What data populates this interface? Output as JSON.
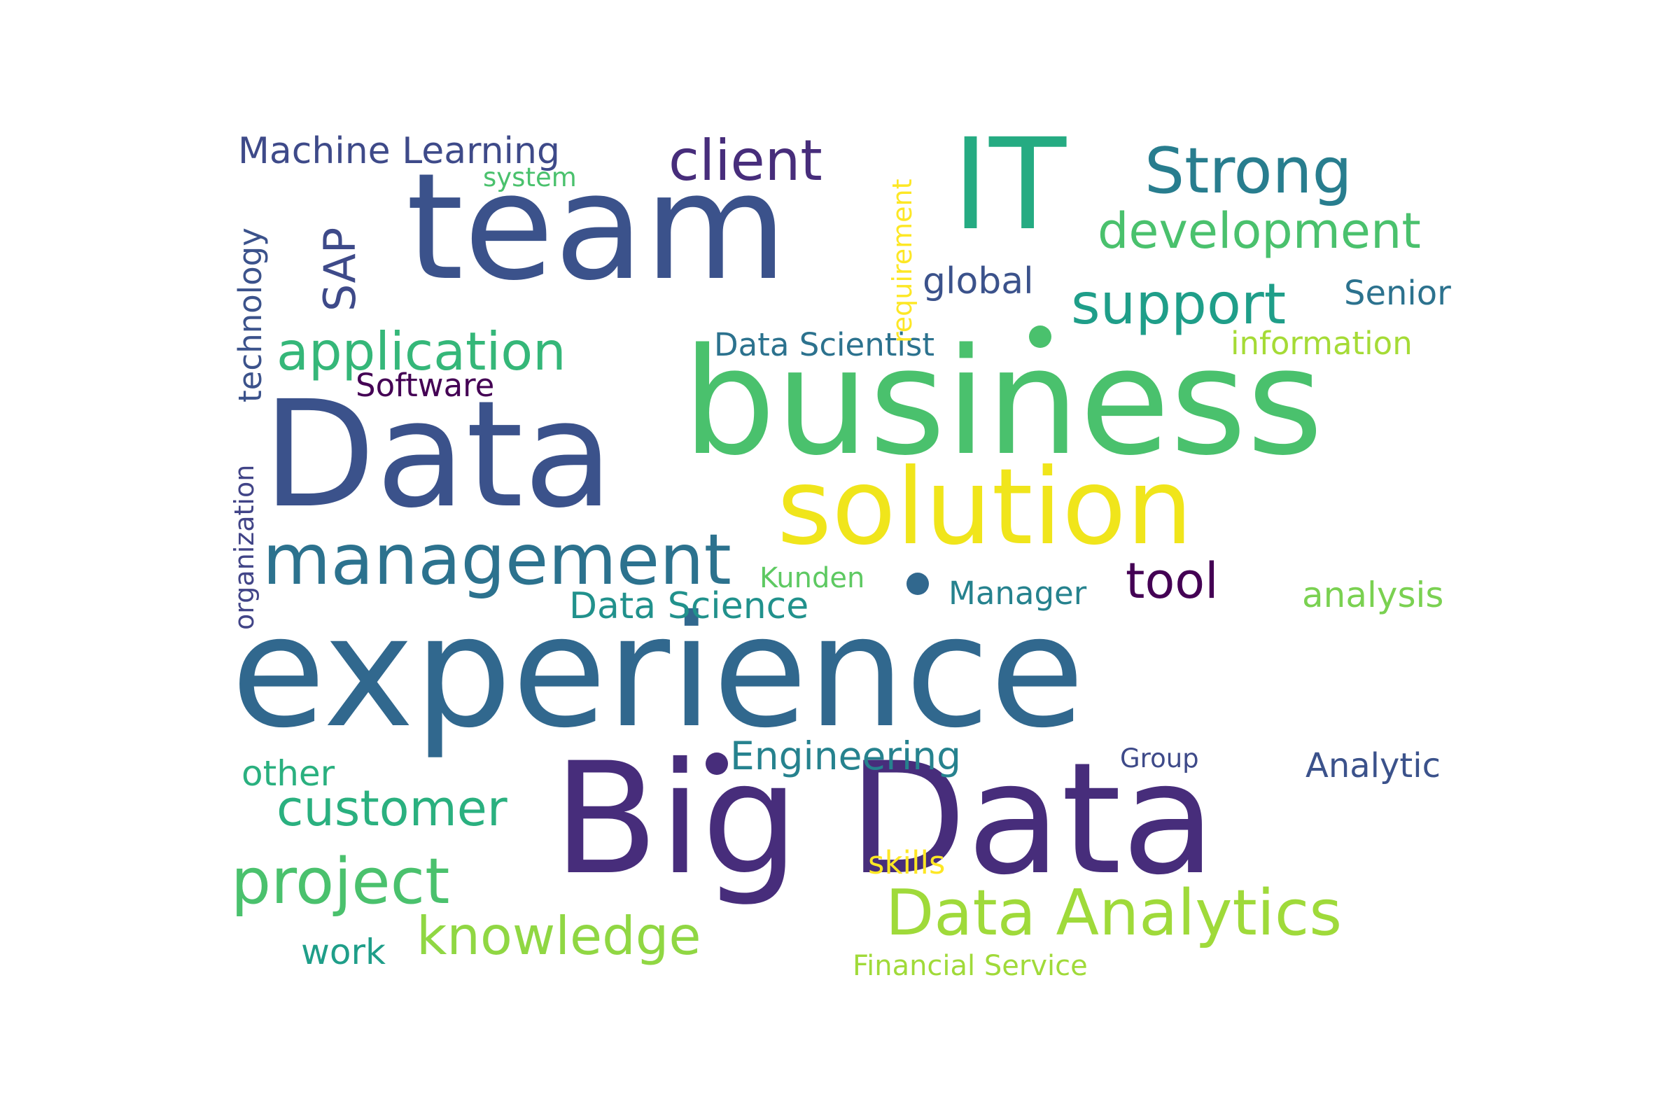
{
  "words": [
    {
      "text": "experience",
      "color": "#31688e"
    },
    {
      "text": "Big Data",
      "color": "#472d7b"
    },
    {
      "text": "business",
      "color": "#4ac16d"
    },
    {
      "text": "team",
      "color": "#3b528b"
    },
    {
      "text": "Data",
      "color": "#3b528b"
    },
    {
      "text": "solution",
      "color": "#f0e51b"
    },
    {
      "text": "IT",
      "color": "#25ab82"
    },
    {
      "text": "management",
      "color": "#2c728e"
    },
    {
      "text": "Data Analytics",
      "color": "#9fda3a"
    },
    {
      "text": "Strong",
      "color": "#287d8e"
    },
    {
      "text": "project",
      "color": "#4ac16d"
    },
    {
      "text": "client",
      "color": "#472d7b"
    },
    {
      "text": "application",
      "color": "#35b779"
    },
    {
      "text": "support",
      "color": "#1f9e89"
    },
    {
      "text": "development",
      "color": "#4ac16d"
    },
    {
      "text": "knowledge",
      "color": "#90d743"
    },
    {
      "text": "customer",
      "color": "#2ab07f"
    },
    {
      "text": "tool",
      "color": "#440154"
    },
    {
      "text": "SAP",
      "color": "#3e4a89"
    },
    {
      "text": "Machine Learning",
      "color": "#3e4a89"
    },
    {
      "text": "technology",
      "color": "#3b528b"
    },
    {
      "text": "Engineering",
      "color": "#26828e"
    },
    {
      "text": "Data Science",
      "color": "#21918c"
    },
    {
      "text": "Data Scientist",
      "color": "#2c728e"
    },
    {
      "text": "Manager",
      "color": "#26828e"
    },
    {
      "text": "analysis",
      "color": "#7ad151"
    },
    {
      "text": "other",
      "color": "#2ab07f"
    },
    {
      "text": "global",
      "color": "#3b528b"
    },
    {
      "text": "Senior",
      "color": "#2c728e"
    },
    {
      "text": "Analytic",
      "color": "#3b528b"
    },
    {
      "text": "work",
      "color": "#1f9e89"
    },
    {
      "text": "Software",
      "color": "#440154"
    },
    {
      "text": "information",
      "color": "#a5db36"
    },
    {
      "text": "skills",
      "color": "#fde725"
    },
    {
      "text": "organization",
      "color": "#414487"
    },
    {
      "text": "requirement",
      "color": "#fde725"
    },
    {
      "text": "Kunden",
      "color": "#5ec962"
    },
    {
      "text": "Financial Service",
      "color": "#a0da39"
    },
    {
      "text": "system",
      "color": "#4ac16d"
    },
    {
      "text": "Group",
      "color": "#3e4a89"
    }
  ],
  "dots": [
    {
      "color": "#4ac16d"
    },
    {
      "color": "#31688e"
    },
    {
      "color": "#472d7b"
    }
  ]
}
